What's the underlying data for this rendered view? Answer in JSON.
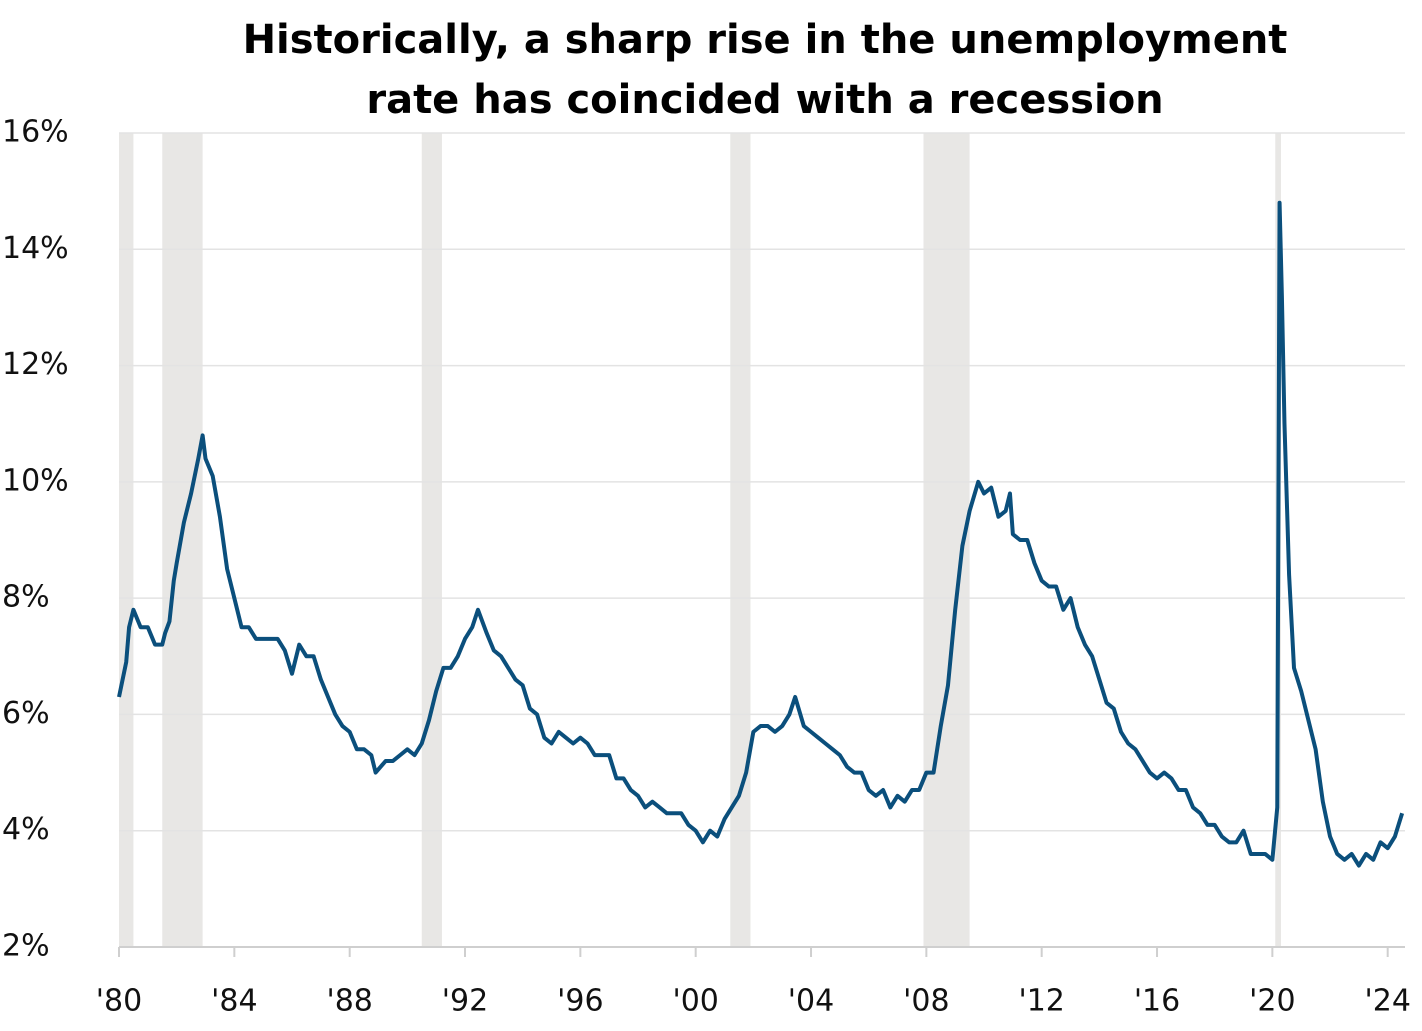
{
  "chart_data": {
    "type": "line",
    "title": "Historically, a sharp rise in the  unemployment rate has coincided with a recession",
    "x": [
      1980.0,
      1980.25,
      1980.35,
      1980.5,
      1980.75,
      1981.0,
      1981.25,
      1981.5,
      1981.6,
      1981.75,
      1981.9,
      1982.0,
      1982.25,
      1982.5,
      1982.75,
      1982.9,
      1983.0,
      1983.25,
      1983.5,
      1983.75,
      1984.0,
      1984.25,
      1984.5,
      1984.75,
      1985.0,
      1985.25,
      1985.5,
      1985.75,
      1986.0,
      1986.25,
      1986.5,
      1986.75,
      1987.0,
      1987.25,
      1987.5,
      1987.75,
      1988.0,
      1988.25,
      1988.5,
      1988.75,
      1988.9,
      1989.25,
      1989.5,
      1989.75,
      1990.0,
      1990.25,
      1990.5,
      1990.75,
      1991.0,
      1991.25,
      1991.5,
      1991.75,
      1992.0,
      1992.25,
      1992.45,
      1992.75,
      1993.0,
      1993.25,
      1993.5,
      1993.75,
      1994.0,
      1994.25,
      1994.5,
      1994.75,
      1995.0,
      1995.25,
      1995.5,
      1995.75,
      1996.0,
      1996.25,
      1996.5,
      1996.75,
      1997.0,
      1997.25,
      1997.5,
      1997.75,
      1998.0,
      1998.25,
      1998.5,
      1998.75,
      1999.0,
      1999.25,
      1999.5,
      1999.75,
      2000.0,
      2000.25,
      2000.5,
      2000.75,
      2001.0,
      2001.25,
      2001.5,
      2001.75,
      2002.0,
      2002.25,
      2002.5,
      2002.75,
      2003.0,
      2003.25,
      2003.45,
      2003.75,
      2004.0,
      2004.25,
      2004.5,
      2004.75,
      2005.0,
      2005.25,
      2005.5,
      2005.75,
      2006.0,
      2006.25,
      2006.5,
      2006.75,
      2007.0,
      2007.25,
      2007.5,
      2007.75,
      2008.0,
      2008.25,
      2008.5,
      2008.75,
      2009.0,
      2009.25,
      2009.5,
      2009.8,
      2010.0,
      2010.25,
      2010.5,
      2010.75,
      2010.9,
      2011.0,
      2011.25,
      2011.5,
      2011.75,
      2012.0,
      2012.25,
      2012.5,
      2012.75,
      2013.0,
      2013.25,
      2013.5,
      2013.75,
      2014.0,
      2014.25,
      2014.5,
      2014.75,
      2015.0,
      2015.25,
      2015.5,
      2015.75,
      2016.0,
      2016.25,
      2016.5,
      2016.75,
      2017.0,
      2017.25,
      2017.5,
      2017.75,
      2018.0,
      2018.25,
      2018.5,
      2018.75,
      2019.0,
      2019.25,
      2019.5,
      2019.75,
      2020.0,
      2020.17,
      2020.25,
      2020.33,
      2020.42,
      2020.58,
      2020.75,
      2021.0,
      2021.25,
      2021.5,
      2021.75,
      2022.0,
      2022.25,
      2022.5,
      2022.75,
      2023.0,
      2023.25,
      2023.5,
      2023.75,
      2024.0,
      2024.25,
      2024.5
    ],
    "series": [
      {
        "name": "Unemployment rate",
        "color": "#0b4f7c",
        "values": [
          6.3,
          6.9,
          7.5,
          7.8,
          7.5,
          7.5,
          7.2,
          7.2,
          7.4,
          7.6,
          8.3,
          8.6,
          9.3,
          9.8,
          10.4,
          10.8,
          10.4,
          10.1,
          9.4,
          8.5,
          8.0,
          7.5,
          7.5,
          7.3,
          7.3,
          7.3,
          7.3,
          7.1,
          6.7,
          7.2,
          7.0,
          7.0,
          6.6,
          6.3,
          6.0,
          5.8,
          5.7,
          5.4,
          5.4,
          5.3,
          5.0,
          5.2,
          5.2,
          5.3,
          5.4,
          5.3,
          5.5,
          5.9,
          6.4,
          6.8,
          6.8,
          7.0,
          7.3,
          7.5,
          7.8,
          7.4,
          7.1,
          7.0,
          6.8,
          6.6,
          6.5,
          6.1,
          6.0,
          5.6,
          5.5,
          5.7,
          5.6,
          5.5,
          5.6,
          5.5,
          5.3,
          5.3,
          5.3,
          4.9,
          4.9,
          4.7,
          4.6,
          4.4,
          4.5,
          4.4,
          4.3,
          4.3,
          4.3,
          4.1,
          4.0,
          3.8,
          4.0,
          3.9,
          4.2,
          4.4,
          4.6,
          5.0,
          5.7,
          5.8,
          5.8,
          5.7,
          5.8,
          6.0,
          6.3,
          5.8,
          5.7,
          5.6,
          5.5,
          5.4,
          5.3,
          5.1,
          5.0,
          5.0,
          4.7,
          4.6,
          4.7,
          4.4,
          4.6,
          4.5,
          4.7,
          4.7,
          5.0,
          5.0,
          5.8,
          6.5,
          7.8,
          8.9,
          9.5,
          10.0,
          9.8,
          9.9,
          9.4,
          9.5,
          9.8,
          9.1,
          9.0,
          9.0,
          8.6,
          8.3,
          8.2,
          8.2,
          7.8,
          8.0,
          7.5,
          7.2,
          7.0,
          6.6,
          6.2,
          6.1,
          5.7,
          5.5,
          5.4,
          5.2,
          5.0,
          4.9,
          5.0,
          4.9,
          4.7,
          4.7,
          4.4,
          4.3,
          4.1,
          4.1,
          3.9,
          3.8,
          3.8,
          4.0,
          3.6,
          3.6,
          3.6,
          3.5,
          4.4,
          14.8,
          13.2,
          11.0,
          8.4,
          6.8,
          6.4,
          5.9,
          5.4,
          4.5,
          3.9,
          3.6,
          3.5,
          3.6,
          3.4,
          3.6,
          3.5,
          3.8,
          3.7,
          3.9,
          4.3
        ]
      }
    ],
    "recessions": [
      {
        "start": 1980.0,
        "end": 1980.5
      },
      {
        "start": 1981.5,
        "end": 1982.9
      },
      {
        "start": 1990.5,
        "end": 1991.2
      },
      {
        "start": 2001.2,
        "end": 2001.9
      },
      {
        "start": 2007.9,
        "end": 2009.5
      },
      {
        "start": 2020.1,
        "end": 2020.3
      }
    ],
    "recession_color": "#e8e7e5",
    "xlim": [
      1980,
      2024.6
    ],
    "xticks": [
      {
        "value": 1980,
        "label": "'80"
      },
      {
        "value": 1984,
        "label": "'84"
      },
      {
        "value": 1988,
        "label": "'88"
      },
      {
        "value": 1992,
        "label": "'92"
      },
      {
        "value": 1996,
        "label": "'96"
      },
      {
        "value": 2000,
        "label": "'00"
      },
      {
        "value": 2004,
        "label": "'04"
      },
      {
        "value": 2008,
        "label": "'08"
      },
      {
        "value": 2012,
        "label": "'12"
      },
      {
        "value": 2016,
        "label": "'16"
      },
      {
        "value": 2020,
        "label": "'20"
      },
      {
        "value": 2024,
        "label": "'24"
      }
    ],
    "ylim": [
      2,
      16
    ],
    "yticks": [
      {
        "value": 2,
        "label": "2%"
      },
      {
        "value": 4,
        "label": "4%"
      },
      {
        "value": 6,
        "label": "6%"
      },
      {
        "value": 8,
        "label": "8%"
      },
      {
        "value": 10,
        "label": "10%"
      },
      {
        "value": 12,
        "label": "12%"
      },
      {
        "value": 14,
        "label": "14%"
      },
      {
        "value": 16,
        "label": "16%"
      }
    ],
    "grid": true
  }
}
